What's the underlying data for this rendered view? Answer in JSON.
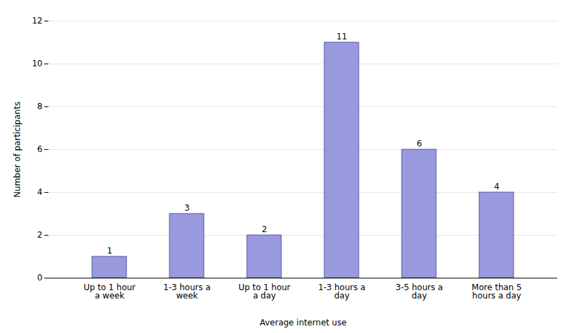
{
  "chart_data": {
    "type": "bar",
    "categories": [
      "Up to 1 hour\na week",
      "1-3 hours a\nweek",
      "Up to 1 hour\na day",
      "1-3 hours a\nday",
      "3-5 hours a\nday",
      "More than 5\nhours a day"
    ],
    "values": [
      1,
      3,
      2,
      11,
      6,
      4
    ],
    "color": "#9999dd",
    "xlabel": "Average internet use",
    "ylabel": "Number of participants",
    "ylim": [
      0,
      12
    ],
    "yticks": [
      0,
      2,
      4,
      6,
      8,
      10,
      12
    ],
    "grid": true,
    "data_labels": true
  }
}
